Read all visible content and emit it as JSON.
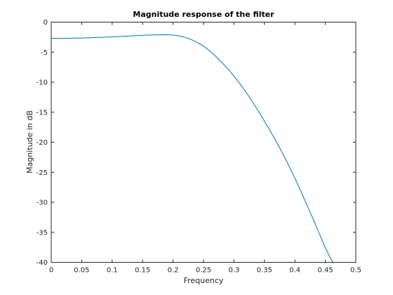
{
  "chart_data": {
    "type": "line",
    "title": "Magnitude response of the filter",
    "xlabel": "Frequency",
    "ylabel": "Magnitude in dB",
    "xlim": [
      0,
      0.5
    ],
    "ylim": [
      -40,
      0
    ],
    "xticks": [
      "0",
      "0.05",
      "0.1",
      "0.15",
      "0.2",
      "0.25",
      "0.3",
      "0.35",
      "0.4",
      "0.45",
      "0.5"
    ],
    "yticks": [
      "0",
      "-5",
      "-10",
      "-15",
      "-20",
      "-25",
      "-30",
      "-35",
      "-40"
    ],
    "grid": false,
    "line_color": "#0072bd",
    "series": [
      {
        "x": [
          0,
          0.02,
          0.05,
          0.08,
          0.1,
          0.12,
          0.15,
          0.17,
          0.19,
          0.2,
          0.21,
          0.22,
          0.23,
          0.24,
          0.25,
          0.26,
          0.27,
          0.28,
          0.29,
          0.3,
          0.31,
          0.32,
          0.33,
          0.34,
          0.35,
          0.36,
          0.37,
          0.38,
          0.39,
          0.4,
          0.41,
          0.42,
          0.43,
          0.44,
          0.45,
          0.46,
          0.467
        ],
        "y": [
          -2.7,
          -2.7,
          -2.65,
          -2.55,
          -2.45,
          -2.35,
          -2.2,
          -2.12,
          -2.1,
          -2.15,
          -2.3,
          -2.55,
          -2.9,
          -3.4,
          -4.0,
          -4.8,
          -5.7,
          -6.7,
          -7.8,
          -9.0,
          -10.3,
          -11.7,
          -13.2,
          -14.8,
          -16.5,
          -18.2,
          -20.0,
          -21.9,
          -23.9,
          -26.0,
          -28.2,
          -30.5,
          -32.8,
          -35.2,
          -37.6,
          -39.6,
          -40.5
        ]
      }
    ]
  }
}
